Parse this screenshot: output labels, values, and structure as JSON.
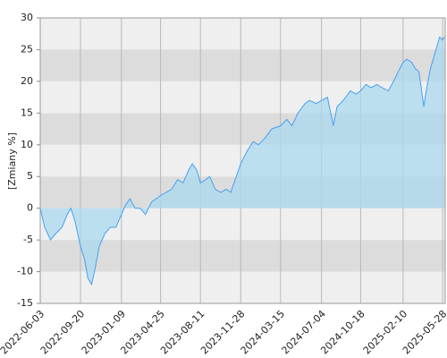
{
  "chart_data": {
    "type": "area",
    "y_label": "[Zmiany %]",
    "x": [
      "2022-06-03",
      "2022-06-15",
      "2022-07-01",
      "2022-07-15",
      "2022-08-01",
      "2022-08-15",
      "2022-08-25",
      "2022-09-05",
      "2022-09-20",
      "2022-10-01",
      "2022-10-10",
      "2022-10-20",
      "2022-10-28",
      "2022-11-10",
      "2022-11-25",
      "2022-12-10",
      "2022-12-25",
      "2023-01-09",
      "2023-01-20",
      "2023-02-01",
      "2023-02-15",
      "2023-03-01",
      "2023-03-15",
      "2023-04-01",
      "2023-04-25",
      "2023-05-10",
      "2023-05-25",
      "2023-06-10",
      "2023-06-25",
      "2023-07-10",
      "2023-07-20",
      "2023-08-01",
      "2023-08-11",
      "2023-08-25",
      "2023-09-05",
      "2023-09-20",
      "2023-10-05",
      "2023-10-20",
      "2023-11-01",
      "2023-11-10",
      "2023-11-28",
      "2023-12-15",
      "2024-01-01",
      "2024-01-15",
      "2024-02-01",
      "2024-02-20",
      "2024-03-15",
      "2024-04-01",
      "2024-04-15",
      "2024-05-01",
      "2024-05-20",
      "2024-06-01",
      "2024-06-20",
      "2024-07-04",
      "2024-07-20",
      "2024-08-05",
      "2024-08-15",
      "2024-09-01",
      "2024-09-20",
      "2024-10-05",
      "2024-10-18",
      "2024-11-01",
      "2024-11-15",
      "2024-12-01",
      "2024-12-15",
      "2025-01-01",
      "2025-01-15",
      "2025-02-01",
      "2025-02-10",
      "2025-02-20",
      "2025-03-05",
      "2025-03-15",
      "2025-03-25",
      "2025-04-07",
      "2025-04-15",
      "2025-04-25",
      "2025-05-10",
      "2025-05-20",
      "2025-05-28",
      "2025-06-01"
    ],
    "series": [
      {
        "color": "#4a9ff0",
        "fill": "#a9d9ef",
        "values": [
          0,
          -3,
          -5,
          -4,
          -3,
          -1,
          0,
          -2,
          -6,
          -8,
          -11,
          -12,
          -10,
          -6,
          -4,
          -3,
          -3,
          -1,
          0.5,
          1.5,
          0,
          0,
          -1,
          1,
          2,
          2.5,
          3,
          4.5,
          4,
          6,
          7,
          6,
          4,
          4.5,
          5,
          3,
          2.5,
          3,
          2.5,
          4,
          7,
          9,
          10.5,
          10,
          11,
          12.5,
          13,
          14,
          13,
          15,
          16.5,
          17,
          16.5,
          17,
          17.5,
          13,
          16,
          17,
          18.5,
          18,
          18.5,
          19.5,
          19,
          19.5,
          19,
          18.5,
          20,
          22,
          23,
          23.5,
          23,
          22,
          21.5,
          16,
          19,
          22,
          25,
          27,
          26.5,
          27
        ]
      }
    ],
    "xlim": [
      "2022-06-03",
      "2025-06-04"
    ],
    "xticks": [
      "2022-06-03",
      "2022-09-20",
      "2023-01-09",
      "2023-04-25",
      "2023-08-11",
      "2023-11-28",
      "2024-03-15",
      "2024-07-04",
      "2024-10-18",
      "2025-02-10",
      "2025-05-28"
    ],
    "ylim": [
      -15,
      30
    ],
    "yticks": [
      30,
      25,
      20,
      15,
      10,
      5,
      0,
      -5,
      -10,
      -15
    ],
    "grid": true
  }
}
